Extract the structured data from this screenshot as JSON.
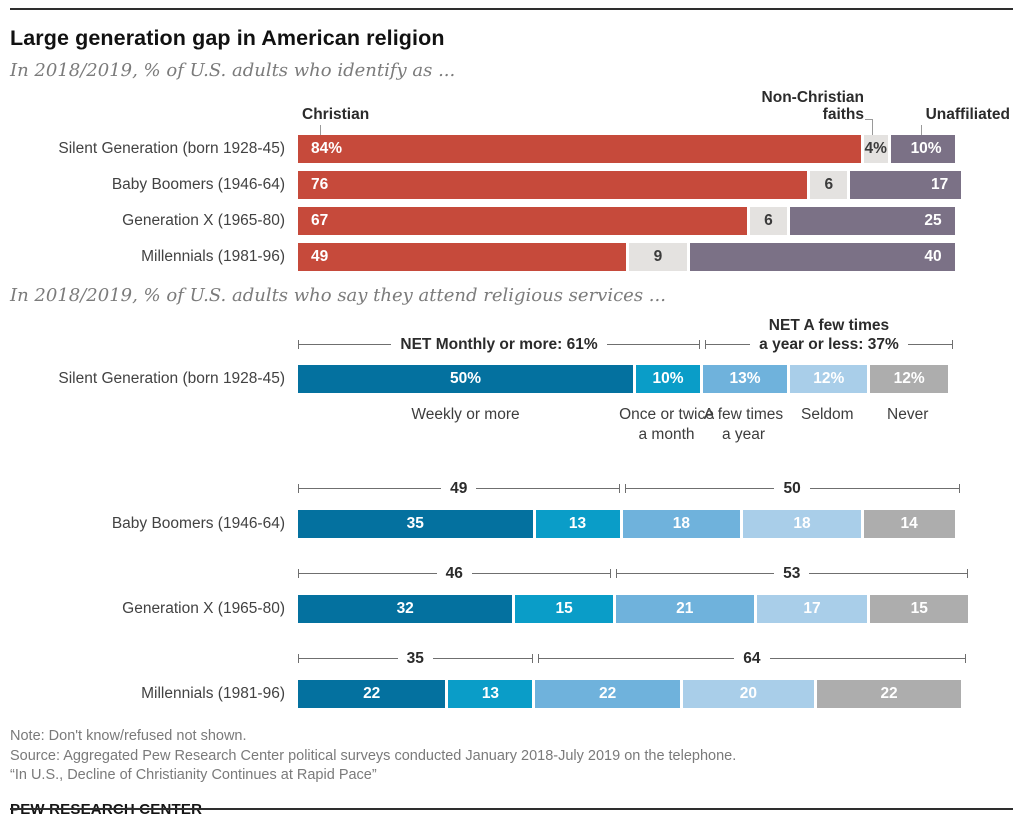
{
  "page": {
    "title": "Large generation gap in American religion",
    "note": "Note: Don't know/refused not shown.",
    "source": "Source: Aggregated Pew Research Center political surveys conducted January 2018-July 2019 on the telephone.",
    "report": "“In U.S., Decline of Christianity Continues at Rapid Pace”",
    "brand": "PEW RESEARCH CENTER"
  },
  "chart_data": [
    {
      "type": "bar",
      "stacked": true,
      "orientation": "horizontal",
      "title": "In 2018/2019, % of U.S. adults who identify as ...",
      "categories": [
        "Silent Generation (born 1928-45)",
        "Baby Boomers (1946-64)",
        "Generation X (1965-80)",
        "Millennials (1981-96)"
      ],
      "headers": {
        "christian": "Christian",
        "non_christian": "Non-Christian\nfaiths",
        "unaffiliated": "Unaffiliated"
      },
      "series": [
        {
          "name": "Christian",
          "color": "#c64a3b",
          "label_color": "#ffffff",
          "align": "align-left",
          "values": [
            84,
            76,
            67,
            49
          ],
          "labels": [
            "84%",
            "76",
            "67",
            "49"
          ]
        },
        {
          "name": "Non-Christian faiths",
          "color": "#e4e2e0",
          "label_color": "#3b3b3b",
          "align": "align-center",
          "values": [
            4,
            6,
            6,
            9
          ],
          "labels": [
            "4%",
            "6",
            "6",
            "9"
          ]
        },
        {
          "name": "Unaffiliated",
          "color": "#7b7186",
          "label_color": "#ffffff",
          "align": "align-right",
          "values": [
            10,
            17,
            25,
            40
          ],
          "labels": [
            "10%",
            "17",
            "25",
            "40"
          ]
        }
      ],
      "xlim": [
        0,
        100
      ],
      "legend_position": "top"
    },
    {
      "type": "bar",
      "stacked": true,
      "orientation": "horizontal",
      "title": "In 2018/2019, % of U.S. adults who say they attend religious services ...",
      "categories": [
        "Silent Generation (born 1928-45)",
        "Baby Boomers (1946-64)",
        "Generation X (1965-80)",
        "Millennials (1981-96)"
      ],
      "series": [
        {
          "name": "Weekly or more",
          "axis_label": "Weekly or more",
          "color": "#04719f",
          "label_color": "#ffffff",
          "values": [
            50,
            35,
            32,
            22
          ],
          "labels": [
            "50%",
            "35",
            "32",
            "22"
          ]
        },
        {
          "name": "Once or twice a month",
          "axis_label": "Once or twice\na month",
          "color": "#0a9dc8",
          "label_color": "#ffffff",
          "values": [
            10,
            13,
            15,
            13
          ],
          "labels": [
            "10%",
            "13",
            "15",
            "13"
          ]
        },
        {
          "name": "A few times a year",
          "axis_label": "A few times\na year",
          "color": "#6fb2dc",
          "label_color": "#ffffff",
          "values": [
            13,
            18,
            21,
            22
          ],
          "labels": [
            "13%",
            "18",
            "21",
            "22"
          ]
        },
        {
          "name": "Seldom",
          "axis_label": "Seldom",
          "color": "#a9cee9",
          "label_color": "#ffffff",
          "values": [
            12,
            18,
            17,
            20
          ],
          "labels": [
            "12%",
            "18",
            "17",
            "20"
          ]
        },
        {
          "name": "Never",
          "axis_label": "Never",
          "color": "#adadad",
          "label_color": "#ffffff",
          "values": [
            12,
            14,
            15,
            22
          ],
          "labels": [
            "12%",
            "14",
            "15",
            "22"
          ]
        }
      ],
      "nets": [
        {
          "monthly": "NET Monthly or more: 61%",
          "few": "NET A few times\na year or less: 37%"
        },
        {
          "monthly": "49",
          "few": "50"
        },
        {
          "monthly": "46",
          "few": "53"
        },
        {
          "monthly": "35",
          "few": "64"
        }
      ],
      "xlim": [
        0,
        100
      ]
    }
  ]
}
